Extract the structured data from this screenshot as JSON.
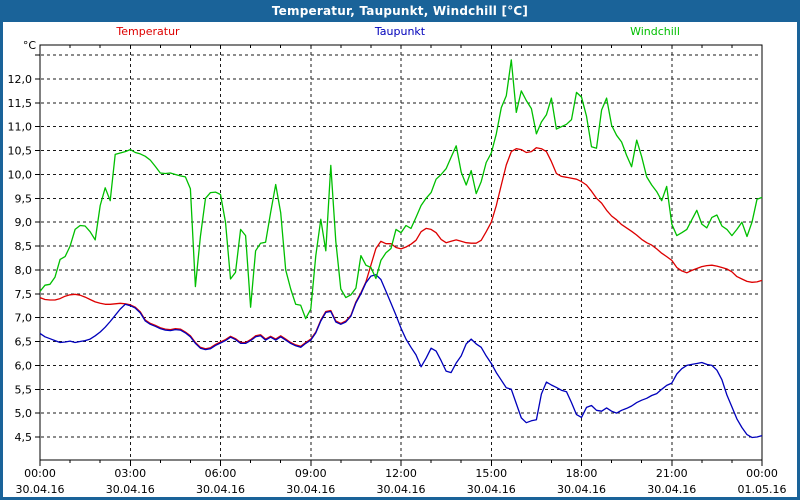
{
  "window": {
    "title": "Temperatur, Taupunkt, Windchill [°C]",
    "titlebar_color": "#1a6399",
    "border_color": "#1a6399",
    "background_color": "#ffffff"
  },
  "legend": [
    {
      "label": "Temperatur",
      "color": "#dd0000"
    },
    {
      "label": "Taupunkt",
      "color": "#0000bb"
    },
    {
      "label": "Windchill",
      "color": "#00bf00"
    }
  ],
  "chart_data": {
    "type": "line",
    "title": "Temperatur, Taupunkt, Windchill [°C]",
    "grid": "dashed",
    "legend_position": "top",
    "y_axis": {
      "unit": "°C",
      "min": 4.0,
      "max": 12.78,
      "tick_step": 0.5,
      "tick_values": [
        4.5,
        5.0,
        5.5,
        6.0,
        6.5,
        7.0,
        7.5,
        8.0,
        8.5,
        9.0,
        9.5,
        10.0,
        10.5,
        11.0,
        11.5,
        12.0
      ],
      "tick_labels": [
        "4,5",
        "5,0",
        "5,5",
        "6,0",
        "6,5",
        "7,0",
        "7,5",
        "8,0",
        "8,5",
        "9,0",
        "9,5",
        "10,0",
        "10,5",
        "11,0",
        "11,5",
        "12,0"
      ],
      "extra_gridline_value": 12.5
    },
    "x_axis": {
      "span_hours": 24,
      "major_tick_hours": 3,
      "minor_tick_hours": 1,
      "major_ticks": [
        {
          "time": "00:00",
          "date": "30.04.16"
        },
        {
          "time": "03:00",
          "date": "30.04.16"
        },
        {
          "time": "06:00",
          "date": "30.04.16"
        },
        {
          "time": "09:00",
          "date": "30.04.16"
        },
        {
          "time": "12:00",
          "date": "30.04.16"
        },
        {
          "time": "15:00",
          "date": "30.04.16"
        },
        {
          "time": "18:00",
          "date": "30.04.16"
        },
        {
          "time": "21:00",
          "date": "30.04.16"
        },
        {
          "time": "00:00",
          "date": "01.05.16"
        }
      ]
    },
    "sample_interval_minutes": 10,
    "series": [
      {
        "name": "Temperatur",
        "color": "#dd0000",
        "values": [
          7.42,
          7.38,
          7.37,
          7.37,
          7.4,
          7.45,
          7.48,
          7.49,
          7.47,
          7.43,
          7.38,
          7.33,
          7.3,
          7.28,
          7.28,
          7.29,
          7.3,
          7.29,
          7.27,
          7.22,
          7.12,
          6.95,
          6.88,
          6.84,
          6.79,
          6.76,
          6.75,
          6.77,
          6.76,
          6.7,
          6.62,
          6.48,
          6.38,
          6.35,
          6.37,
          6.44,
          6.49,
          6.54,
          6.61,
          6.56,
          6.48,
          6.48,
          6.54,
          6.62,
          6.64,
          6.55,
          6.61,
          6.55,
          6.62,
          6.55,
          6.48,
          6.43,
          6.4,
          6.48,
          6.55,
          6.7,
          6.95,
          7.13,
          7.15,
          6.93,
          6.88,
          6.93,
          7.05,
          7.33,
          7.52,
          7.75,
          8.1,
          8.45,
          8.6,
          8.55,
          8.55,
          8.47,
          8.44,
          8.48,
          8.54,
          8.62,
          8.8,
          8.87,
          8.85,
          8.78,
          8.64,
          8.57,
          8.6,
          8.63,
          8.6,
          8.57,
          8.56,
          8.56,
          8.62,
          8.8,
          9.0,
          9.35,
          9.78,
          10.2,
          10.48,
          10.54,
          10.52,
          10.46,
          10.48,
          10.56,
          10.54,
          10.48,
          10.27,
          10.02,
          9.96,
          9.94,
          9.92,
          9.9,
          9.85,
          9.78,
          9.65,
          9.5,
          9.4,
          9.25,
          9.13,
          9.05,
          8.95,
          8.88,
          8.81,
          8.73,
          8.64,
          8.57,
          8.52,
          8.44,
          8.35,
          8.28,
          8.2,
          8.05,
          7.98,
          7.94,
          7.99,
          8.03,
          8.07,
          8.09,
          8.1,
          8.08,
          8.05,
          8.02,
          7.96,
          7.86,
          7.81,
          7.76,
          7.74,
          7.75,
          7.78
        ]
      },
      {
        "name": "Taupunkt",
        "color": "#0000bb",
        "values": [
          6.67,
          6.6,
          6.56,
          6.52,
          6.48,
          6.49,
          6.51,
          6.48,
          6.5,
          6.52,
          6.55,
          6.62,
          6.7,
          6.8,
          6.92,
          7.05,
          7.18,
          7.28,
          7.25,
          7.2,
          7.1,
          6.93,
          6.86,
          6.82,
          6.77,
          6.74,
          6.73,
          6.75,
          6.74,
          6.68,
          6.6,
          6.46,
          6.36,
          6.33,
          6.35,
          6.42,
          6.47,
          6.52,
          6.59,
          6.54,
          6.46,
          6.46,
          6.52,
          6.6,
          6.62,
          6.53,
          6.59,
          6.53,
          6.6,
          6.53,
          6.46,
          6.41,
          6.38,
          6.46,
          6.53,
          6.68,
          6.93,
          7.11,
          7.13,
          6.91,
          6.86,
          6.91,
          7.03,
          7.31,
          7.5,
          7.73,
          7.87,
          7.9,
          7.8,
          7.55,
          7.3,
          7.05,
          6.78,
          6.55,
          6.38,
          6.22,
          5.97,
          6.15,
          6.36,
          6.3,
          6.1,
          5.88,
          5.85,
          6.05,
          6.2,
          6.45,
          6.55,
          6.45,
          6.38,
          6.2,
          6.04,
          5.85,
          5.69,
          5.53,
          5.5,
          5.2,
          4.9,
          4.8,
          4.84,
          4.86,
          5.4,
          5.65,
          5.59,
          5.54,
          5.48,
          5.45,
          5.22,
          4.97,
          4.91,
          5.12,
          5.16,
          5.06,
          5.04,
          5.11,
          5.04,
          5.0,
          5.06,
          5.1,
          5.15,
          5.22,
          5.27,
          5.31,
          5.37,
          5.41,
          5.5,
          5.58,
          5.63,
          5.82,
          5.93,
          6.0,
          6.02,
          6.04,
          6.06,
          6.02,
          6.0,
          5.9,
          5.7,
          5.38,
          5.13,
          4.88,
          4.7,
          4.55,
          4.49,
          4.5,
          4.53
        ]
      },
      {
        "name": "Windchill",
        "color": "#00bf00",
        "values": [
          7.55,
          7.68,
          7.7,
          7.85,
          8.22,
          8.28,
          8.5,
          8.85,
          8.93,
          8.92,
          8.8,
          8.63,
          9.35,
          9.72,
          9.45,
          10.42,
          10.45,
          10.48,
          10.52,
          10.46,
          10.43,
          10.38,
          10.3,
          10.17,
          10.03,
          10.02,
          10.03,
          10.0,
          9.97,
          9.95,
          9.7,
          7.65,
          8.7,
          9.5,
          9.62,
          9.63,
          9.58,
          9.0,
          7.81,
          7.95,
          8.85,
          8.72,
          7.22,
          8.4,
          8.56,
          8.58,
          9.2,
          9.79,
          9.2,
          8.0,
          7.6,
          7.28,
          7.26,
          6.98,
          7.18,
          8.3,
          9.06,
          8.4,
          10.19,
          8.6,
          7.6,
          7.42,
          7.48,
          7.62,
          8.3,
          8.1,
          8.05,
          7.82,
          8.2,
          8.36,
          8.45,
          8.85,
          8.78,
          8.93,
          8.87,
          9.1,
          9.35,
          9.5,
          9.62,
          9.9,
          10.0,
          10.12,
          10.36,
          10.6,
          10.05,
          9.78,
          10.08,
          9.6,
          9.85,
          10.25,
          10.45,
          10.85,
          11.4,
          11.65,
          12.4,
          11.3,
          11.75,
          11.55,
          11.38,
          10.85,
          11.1,
          11.25,
          11.6,
          10.95,
          11.0,
          11.05,
          11.15,
          11.72,
          11.62,
          11.22,
          10.58,
          10.55,
          11.35,
          11.6,
          11.03,
          10.82,
          10.68,
          10.4,
          10.16,
          10.72,
          10.37,
          9.95,
          9.78,
          9.64,
          9.45,
          9.75,
          8.96,
          8.72,
          8.78,
          8.85,
          9.05,
          9.25,
          8.96,
          8.88,
          9.1,
          9.15,
          8.92,
          8.85,
          8.72,
          8.85,
          9.0,
          8.7,
          9.0,
          9.48,
          9.52
        ]
      }
    ]
  }
}
